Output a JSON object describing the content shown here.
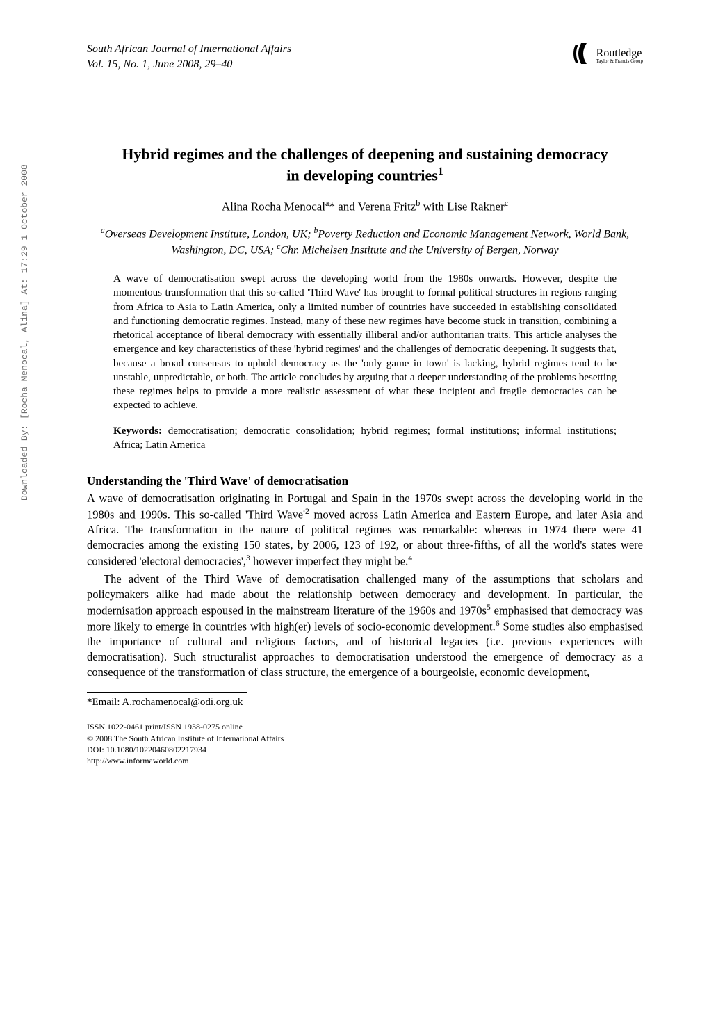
{
  "sidebar": {
    "download_info": "Downloaded By: [Rocha Menocal, Alina] At: 17:29 1 October 2008"
  },
  "header": {
    "journal_name": "South African Journal of International Affairs",
    "volume_info": "Vol. 15, No. 1, June 2008, 29–40",
    "publisher": {
      "icon_glyph": "❯",
      "name": "Routledge",
      "tagline": "Taylor & Francis Group"
    }
  },
  "article": {
    "title_line1": "Hybrid regimes and the challenges of deepening and sustaining democracy",
    "title_line2": "in developing countries",
    "title_note": "1",
    "authors_html": "Alina Rocha Menocal<sup>a</sup>* and Verena Fritz<sup>b</sup> with Lise Rakner<sup>c</sup>",
    "affiliations_html": "<sup>a</sup>Overseas Development Institute, London, UK; <sup>b</sup>Poverty Reduction and Economic Management Network, World Bank, Washington, DC, USA; <sup>c</sup>Chr. Michelsen Institute and the University of Bergen, Norway",
    "abstract": "A wave of democratisation swept across the developing world from the 1980s onwards. However, despite the momentous transformation that this so-called 'Third Wave' has brought to formal political structures in regions ranging from Africa to Asia to Latin America, only a limited number of countries have succeeded in establishing consolidated and functioning democratic regimes. Instead, many of these new regimes have become stuck in transition, combining a rhetorical acceptance of liberal democracy with essentially illiberal and/or authoritarian traits. This article analyses the emergence and key characteristics of these 'hybrid regimes' and the challenges of democratic deepening. It suggests that, because a broad consensus to uphold democracy as the 'only game in town' is lacking, hybrid regimes tend to be unstable, unpredictable, or both. The article concludes by arguing that a deeper understanding of the problems besetting these regimes helps to provide a more realistic assessment of what these incipient and fragile democracies can be expected to achieve.",
    "keywords_label": "Keywords:",
    "keywords": " democratisation; democratic consolidation; hybrid regimes; formal institutions; informal institutions; Africa; Latin America"
  },
  "body": {
    "heading1": "Understanding the 'Third Wave' of democratisation",
    "para1_html": "A wave of democratisation originating in Portugal and Spain in the 1970s swept across the developing world in the 1980s and 1990s. This so-called 'Third Wave'<sup>2</sup> moved across Latin America and Eastern Europe, and later Asia and Africa. The transformation in the nature of political regimes was remarkable: whereas in 1974 there were 41 democracies among the existing 150 states, by 2006, 123 of 192, or about three-fifths, of all the world's states were considered 'electoral democracies',<sup>3</sup> however imperfect they might be.<sup>4</sup>",
    "para2_html": "The advent of the Third Wave of democratisation challenged many of the assumptions that scholars and policymakers alike had made about the relationship between democracy and development. In particular, the modernisation approach espoused in the mainstream literature of the 1960s and 1970s<sup>5</sup> emphasised that democracy was more likely to emerge in countries with high(er) levels of socio-economic development.<sup>6</sup> Some studies also emphasised the importance of cultural and religious factors, and of historical legacies (i.e. previous experiences with democratisation). Such structuralist approaches to democratisation understood the emergence of democracy as a consequence of the transformation of class structure, the emergence of a bourgeoisie, economic development,"
  },
  "footnote": {
    "email_label": "*Email: ",
    "email": "A.rochamenocal@odi.org.uk"
  },
  "footer": {
    "line1": "ISSN 1022-0461 print/ISSN 1938-0275 online",
    "line2": "© 2008 The South African Institute of International Affairs",
    "line3": "DOI: 10.1080/10220460802217934",
    "line4": "http://www.informaworld.com"
  }
}
